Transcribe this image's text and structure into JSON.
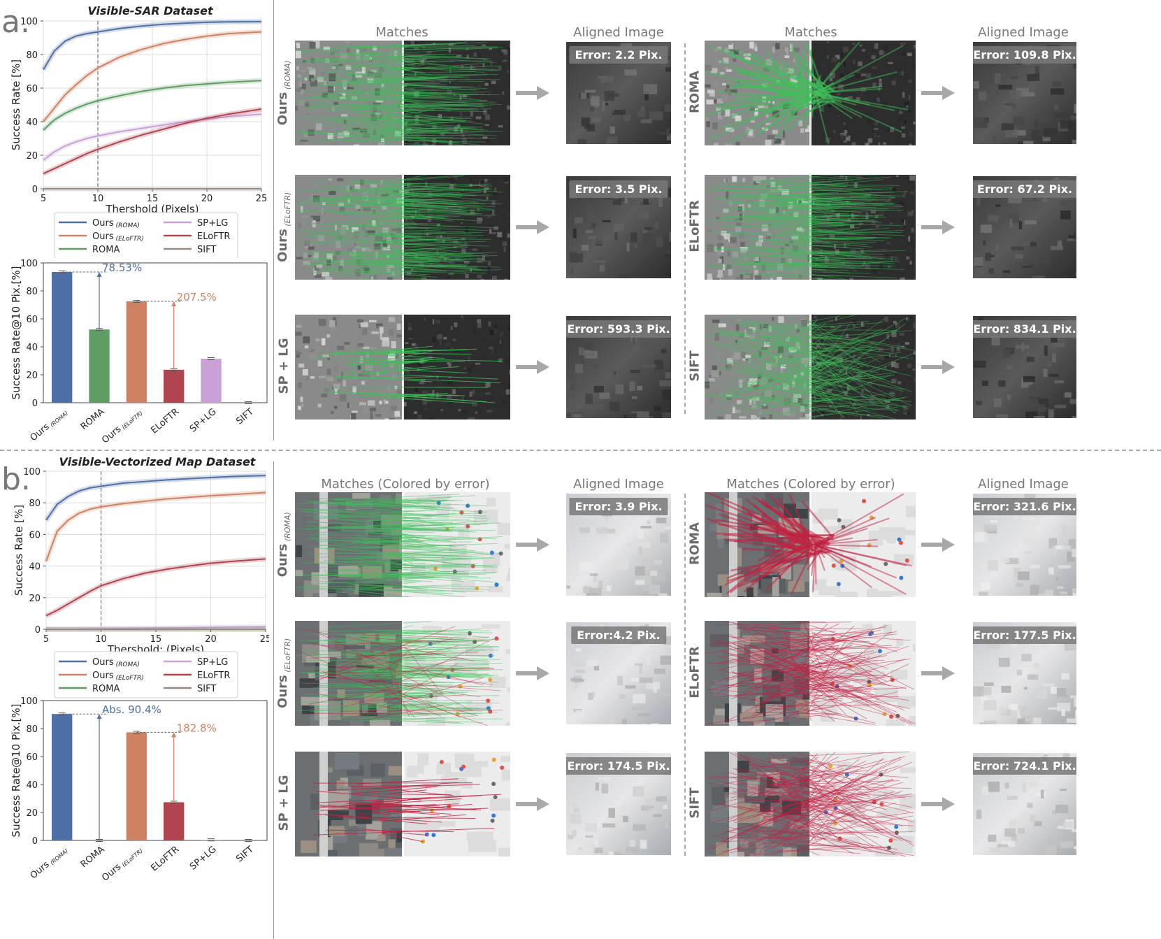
{
  "colors": {
    "ours_roma": "#4f6fa8",
    "ours_eloftr": "#cf8262",
    "roma": "#5e9e64",
    "sp_lg": "#c9a1d6",
    "eloftr": "#b0454f",
    "sift": "#9a8a80",
    "match_green": "#3fbf5a",
    "match_red": "#c02040"
  },
  "panels": [
    {
      "letter": "a.",
      "title": "Visible-SAR Dataset",
      "line_chart": {
        "type": "line",
        "xlabel": "Thershold (Pixels)",
        "ylabel": "Success Rate [%]",
        "xlim": [
          5,
          25
        ],
        "ylim": [
          0,
          100
        ],
        "xticks": [
          "5",
          "10",
          "15",
          "20",
          "25"
        ],
        "yticks": [
          "0",
          "20",
          "40",
          "60",
          "80",
          "100"
        ],
        "vline": 10,
        "x": [
          5,
          6,
          7,
          8,
          9,
          10,
          12,
          14,
          16,
          18,
          20,
          22,
          25
        ],
        "series": [
          {
            "name": "Ours",
            "sub": "(ROMA)",
            "key": "ours_roma",
            "values": [
              71,
              82,
              88,
              91,
              92.5,
              93.5,
              95.5,
              97,
              98,
              98.7,
              99.2,
              99.5,
              99.6
            ]
          },
          {
            "name": "Ours",
            "sub": "(ELoFTR)",
            "key": "ours_eloftr",
            "values": [
              40,
              48,
              56,
              62,
              67.5,
              72,
              78.5,
              83,
              86.5,
              89,
              91,
              92.5,
              93.5
            ]
          },
          {
            "name": "ROMA",
            "key": "roma",
            "values": [
              35,
              41,
              45,
              48,
              50.5,
              52.5,
              55.5,
              58,
              60,
              61.5,
              62.5,
              63.5,
              64.5
            ]
          },
          {
            "name": "SP+LG",
            "key": "sp_lg",
            "values": [
              17,
              22,
              25.5,
              28,
              30,
              31.5,
              34,
              36,
              38,
              40,
              41.5,
              43,
              44.5
            ]
          },
          {
            "name": "ELoFTR",
            "key": "eloftr",
            "values": [
              9,
              12,
              15,
              18,
              21,
              23.5,
              28,
              32,
              35.5,
              39,
              42,
              44.5,
              47.5
            ]
          },
          {
            "name": "SIFT",
            "key": "sift",
            "values": [
              0,
              0,
              0,
              0,
              0,
              0,
              0,
              0,
              0,
              0,
              0,
              0,
              0
            ]
          }
        ]
      },
      "bar_chart": {
        "type": "bar",
        "ylabel": "Success Rate@10 Pix.[%]",
        "ylim": [
          0,
          100
        ],
        "yticks": [
          "0",
          "20",
          "40",
          "60",
          "80",
          "100"
        ],
        "categories": [
          {
            "name": "Ours",
            "sub": "(ROMA)",
            "key": "ours_roma",
            "value": 93.5
          },
          {
            "name": "ROMA",
            "sub": "",
            "key": "roma",
            "value": 52.4
          },
          {
            "name": "Ours",
            "sub": "(ELoFTR)",
            "key": "ours_eloftr",
            "value": 72.5
          },
          {
            "name": "ELoFTR",
            "sub": "",
            "key": "eloftr",
            "value": 23.6
          },
          {
            "name": "SP+LG",
            "sub": "",
            "key": "sp_lg",
            "value": 31.5
          },
          {
            "name": "SIFT",
            "sub": "",
            "key": "sift",
            "value": 0
          }
        ],
        "annotations": [
          {
            "text": "78.53%",
            "from": 0,
            "to": 1,
            "key": "ours_roma"
          },
          {
            "text": "207.5%",
            "from": 2,
            "to": 3,
            "key": "ours_eloftr"
          }
        ]
      },
      "matches_header": "Matches",
      "aligned_header": "Aligned Image",
      "rows": [
        {
          "method": "Ours",
          "sub": "(ROMA)",
          "error": "Error: 2.2 Pix.",
          "tone": "sar",
          "mode": "dense-green"
        },
        {
          "method": "Ours",
          "sub": "(ELoFTR)",
          "error": "Error: 3.5 Pix.",
          "tone": "sar",
          "mode": "dense-green"
        },
        {
          "method": "SP + LG",
          "sub": "",
          "error": "Error: 593.3 Pix.",
          "tone": "sar",
          "mode": "sparse-green"
        },
        {
          "method": "ROMA",
          "sub": "",
          "error": "Error: 109.8 Pix.",
          "tone": "sar",
          "mode": "fan-green"
        },
        {
          "method": "ELoFTR",
          "sub": "",
          "error": "Error: 67.2 Pix.",
          "tone": "sar",
          "mode": "dense-green"
        },
        {
          "method": "SIFT",
          "sub": "",
          "error": "Error: 834.1 Pix.",
          "tone": "sar",
          "mode": "random-green"
        }
      ]
    },
    {
      "letter": "b.",
      "title": "Visible-Vectorized Map Dataset",
      "line_chart": {
        "type": "line",
        "xlabel": "Thershold: (Pixels)",
        "ylabel": "Success Rate [%]",
        "xlim": [
          5,
          25
        ],
        "ylim": [
          0,
          100
        ],
        "xticks": [
          "5",
          "10",
          "15",
          "20",
          "25"
        ],
        "yticks": [
          "0",
          "20",
          "40",
          "60",
          "80",
          "100"
        ],
        "vline": 10,
        "x": [
          5,
          6,
          7,
          8,
          9,
          10,
          12,
          14,
          16,
          18,
          20,
          22,
          25
        ],
        "series": [
          {
            "name": "Ours",
            "sub": "(ROMA)",
            "key": "ours_roma",
            "values": [
              69,
              79,
              84,
              87.5,
              89.5,
              90.5,
              92.5,
              93.5,
              94.5,
              95.3,
              96,
              96.7,
              97.3
            ]
          },
          {
            "name": "Ours",
            "sub": "(ELoFTR)",
            "key": "ours_eloftr",
            "values": [
              43,
              62,
              69,
              73.5,
              76,
              77.5,
              79.5,
              81,
              82.5,
              83.5,
              84.5,
              85.3,
              86.5
            ]
          },
          {
            "name": "ROMA",
            "key": "roma",
            "values": [
              0,
              0,
              0,
              0,
              0,
              0,
              0,
              0,
              0,
              0,
              0,
              0,
              0
            ]
          },
          {
            "name": "SP+LG",
            "key": "sp_lg",
            "values": [
              0,
              0,
              0,
              0,
              0.2,
              0.3,
              0.4,
              0.6,
              0.8,
              1,
              1.2,
              1.4,
              1.6
            ]
          },
          {
            "name": "ELoFTR",
            "key": "eloftr",
            "values": [
              8.5,
              12,
              16,
              20,
              24,
              27.5,
              32,
              35.5,
              38,
              40,
              41.8,
              43,
              44.5
            ]
          },
          {
            "name": "SIFT",
            "key": "sift",
            "values": [
              0,
              0,
              0,
              0,
              0,
              0,
              0,
              0,
              0,
              0,
              0,
              0,
              0
            ]
          }
        ]
      },
      "bar_chart": {
        "type": "bar",
        "ylabel": "Success Rate@10 Pix.[%]",
        "ylim": [
          0,
          100
        ],
        "yticks": [
          "0",
          "20",
          "40",
          "60",
          "80",
          "100"
        ],
        "categories": [
          {
            "name": "Ours",
            "sub": "(ROMA)",
            "key": "ours_roma",
            "value": 90.4
          },
          {
            "name": "ROMA",
            "sub": "",
            "key": "roma",
            "value": 0
          },
          {
            "name": "Ours",
            "sub": "(ELoFTR)",
            "key": "ours_eloftr",
            "value": 77.3
          },
          {
            "name": "ELoFTR",
            "sub": "",
            "key": "eloftr",
            "value": 27.3
          },
          {
            "name": "SP+LG",
            "sub": "",
            "key": "sp_lg",
            "value": 0.4
          },
          {
            "name": "SIFT",
            "sub": "",
            "key": "sift",
            "value": 0
          }
        ],
        "annotations": [
          {
            "text": "Abs. 90.4%",
            "from": 0,
            "to": 1,
            "key": "ours_roma"
          },
          {
            "text": "182.8%",
            "from": 2,
            "to": 3,
            "key": "ours_eloftr"
          }
        ]
      },
      "matches_header": "Matches (Colored by error)",
      "aligned_header": "Aligned Image",
      "rows": [
        {
          "method": "Ours",
          "sub": "(ROMA)",
          "error": "Error: 3.9 Pix.",
          "tone": "map",
          "mode": "dense-green"
        },
        {
          "method": "Ours",
          "sub": "(ELoFTR)",
          "error": "Error:4.2 Pix.",
          "tone": "map",
          "mode": "mixed"
        },
        {
          "method": "SP + LG",
          "sub": "",
          "error": "Error: 174.5 Pix.",
          "tone": "map",
          "mode": "sparse-red"
        },
        {
          "method": "ROMA",
          "sub": "",
          "error": "Error: 321.6 Pix.",
          "tone": "map",
          "mode": "fan-red"
        },
        {
          "method": "ELoFTR",
          "sub": "",
          "error": "Error: 177.5 Pix.",
          "tone": "map",
          "mode": "random-red"
        },
        {
          "method": "SIFT",
          "sub": "",
          "error": "Error: 724.1 Pix.",
          "tone": "map",
          "mode": "random-red"
        }
      ]
    }
  ]
}
